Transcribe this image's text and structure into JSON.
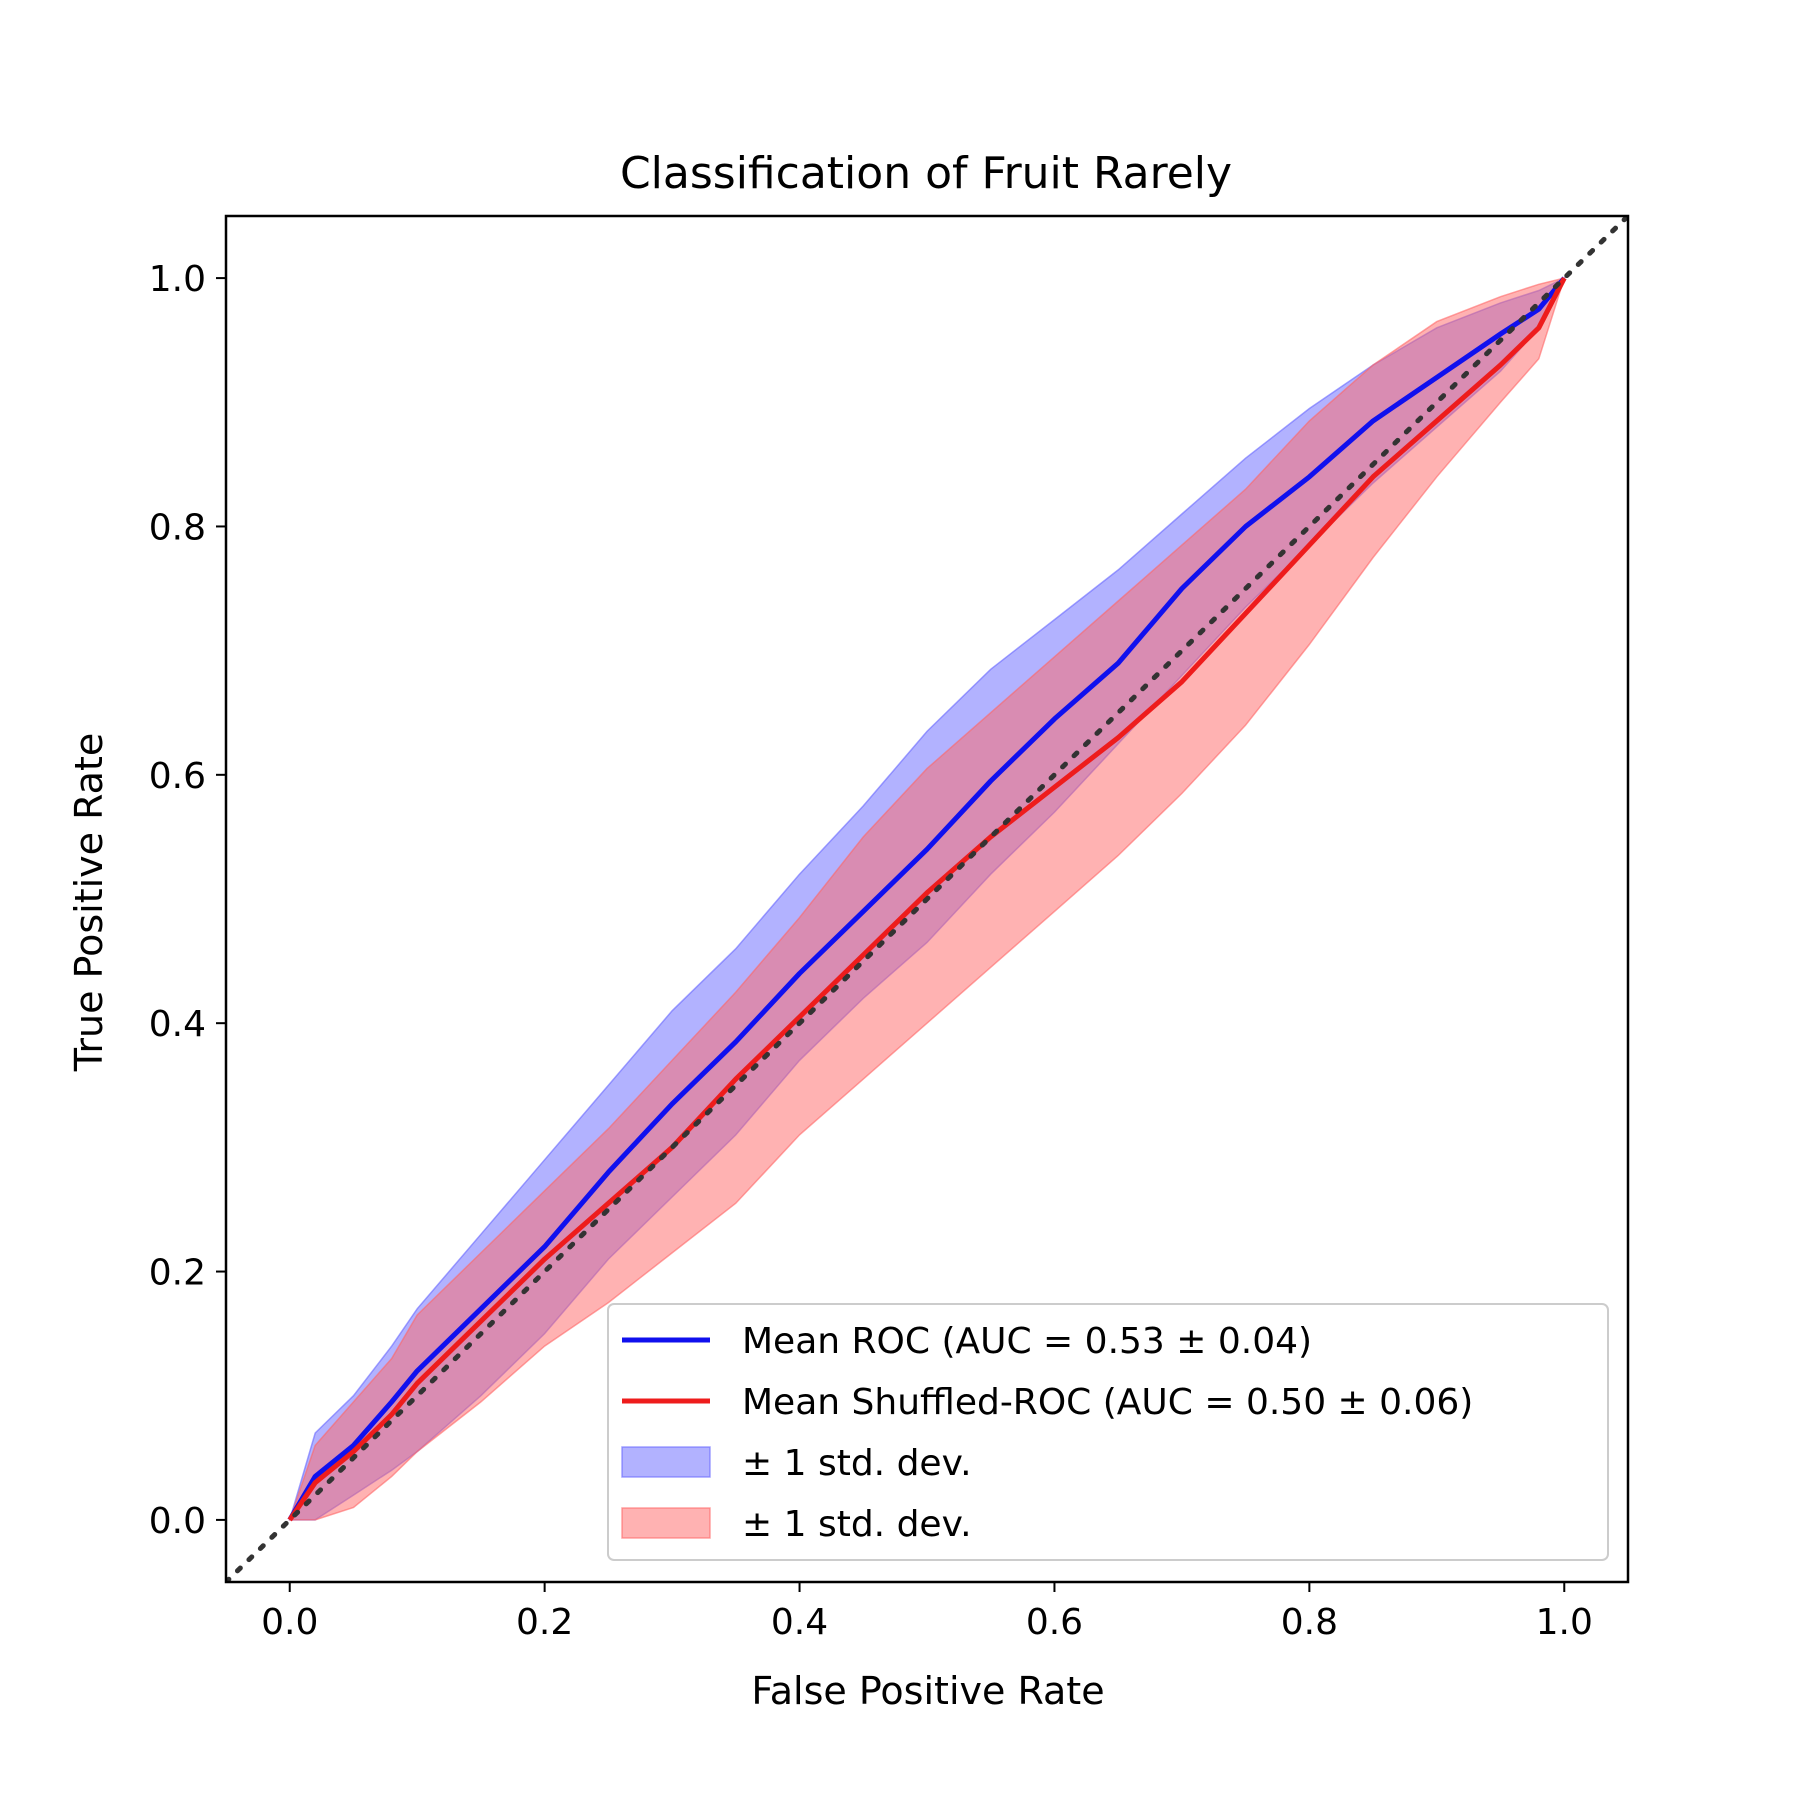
{
  "chart_data": {
    "type": "line",
    "title": "Classification of Fruit Rarely",
    "xlabel": "False Positive Rate",
    "ylabel": "True Positive Rate",
    "xlim": [
      -0.05,
      1.05
    ],
    "ylim": [
      -0.05,
      1.05
    ],
    "xticks": [
      "0.0",
      "0.2",
      "0.4",
      "0.6",
      "0.8",
      "1.0"
    ],
    "yticks": [
      "0.0",
      "0.2",
      "0.4",
      "0.6",
      "0.8",
      "1.0"
    ],
    "legend_position": "lower-right",
    "colors": {
      "mean_roc": "#1010ee",
      "mean_shuffled": "#ee1c1c",
      "band_roc": "#6666ff",
      "band_shuffled": "#ff6666",
      "chance": "#333333"
    },
    "series": [
      {
        "name": "Mean ROC (AUC = 0.53 ± 0.04)",
        "x": [
          0.0,
          0.02,
          0.05,
          0.08,
          0.1,
          0.15,
          0.2,
          0.25,
          0.3,
          0.35,
          0.4,
          0.45,
          0.5,
          0.55,
          0.6,
          0.65,
          0.7,
          0.75,
          0.8,
          0.85,
          0.9,
          0.95,
          0.98,
          1.0
        ],
        "y": [
          0.0,
          0.035,
          0.06,
          0.095,
          0.12,
          0.17,
          0.22,
          0.28,
          0.335,
          0.385,
          0.44,
          0.49,
          0.54,
          0.595,
          0.645,
          0.69,
          0.75,
          0.8,
          0.84,
          0.885,
          0.92,
          0.955,
          0.975,
          1.0
        ],
        "lower": [
          0.0,
          0.0,
          0.02,
          0.04,
          0.055,
          0.1,
          0.15,
          0.21,
          0.26,
          0.31,
          0.37,
          0.42,
          0.465,
          0.52,
          0.57,
          0.625,
          0.68,
          0.735,
          0.785,
          0.835,
          0.88,
          0.925,
          0.96,
          1.0
        ],
        "upper": [
          0.0,
          0.07,
          0.1,
          0.14,
          0.17,
          0.23,
          0.29,
          0.35,
          0.41,
          0.46,
          0.52,
          0.575,
          0.635,
          0.685,
          0.725,
          0.765,
          0.81,
          0.855,
          0.895,
          0.93,
          0.96,
          0.98,
          0.99,
          1.0
        ]
      },
      {
        "name": "Mean Shuffled-ROC (AUC = 0.50 ± 0.06)",
        "x": [
          0.0,
          0.02,
          0.05,
          0.08,
          0.1,
          0.15,
          0.2,
          0.25,
          0.3,
          0.35,
          0.4,
          0.45,
          0.5,
          0.55,
          0.6,
          0.65,
          0.7,
          0.75,
          0.8,
          0.85,
          0.9,
          0.95,
          0.98,
          1.0
        ],
        "y": [
          0.0,
          0.03,
          0.055,
          0.085,
          0.11,
          0.16,
          0.21,
          0.255,
          0.3,
          0.355,
          0.405,
          0.455,
          0.505,
          0.55,
          0.59,
          0.63,
          0.675,
          0.73,
          0.785,
          0.84,
          0.885,
          0.93,
          0.96,
          1.0
        ],
        "lower": [
          0.0,
          0.0,
          0.01,
          0.035,
          0.055,
          0.095,
          0.14,
          0.175,
          0.215,
          0.255,
          0.31,
          0.355,
          0.4,
          0.445,
          0.49,
          0.535,
          0.585,
          0.64,
          0.705,
          0.775,
          0.84,
          0.9,
          0.935,
          1.0
        ],
        "upper": [
          0.0,
          0.06,
          0.095,
          0.13,
          0.165,
          0.215,
          0.265,
          0.315,
          0.37,
          0.425,
          0.485,
          0.55,
          0.605,
          0.65,
          0.695,
          0.74,
          0.785,
          0.83,
          0.885,
          0.93,
          0.965,
          0.985,
          0.995,
          1.0
        ]
      }
    ],
    "chance_line": {
      "x": [
        -0.05,
        1.05
      ],
      "y": [
        -0.05,
        1.05
      ]
    },
    "legend": [
      {
        "label": "Mean ROC (AUC = 0.53 ± 0.04)",
        "kind": "line",
        "color": "#1010ee"
      },
      {
        "label": "Mean Shuffled-ROC (AUC = 0.50 ± 0.06)",
        "kind": "line",
        "color": "#ee1c1c"
      },
      {
        "label": "± 1 std. dev.",
        "kind": "patch",
        "color": "#6666ff"
      },
      {
        "label": "± 1 std. dev.",
        "kind": "patch",
        "color": "#ff6666"
      }
    ]
  }
}
